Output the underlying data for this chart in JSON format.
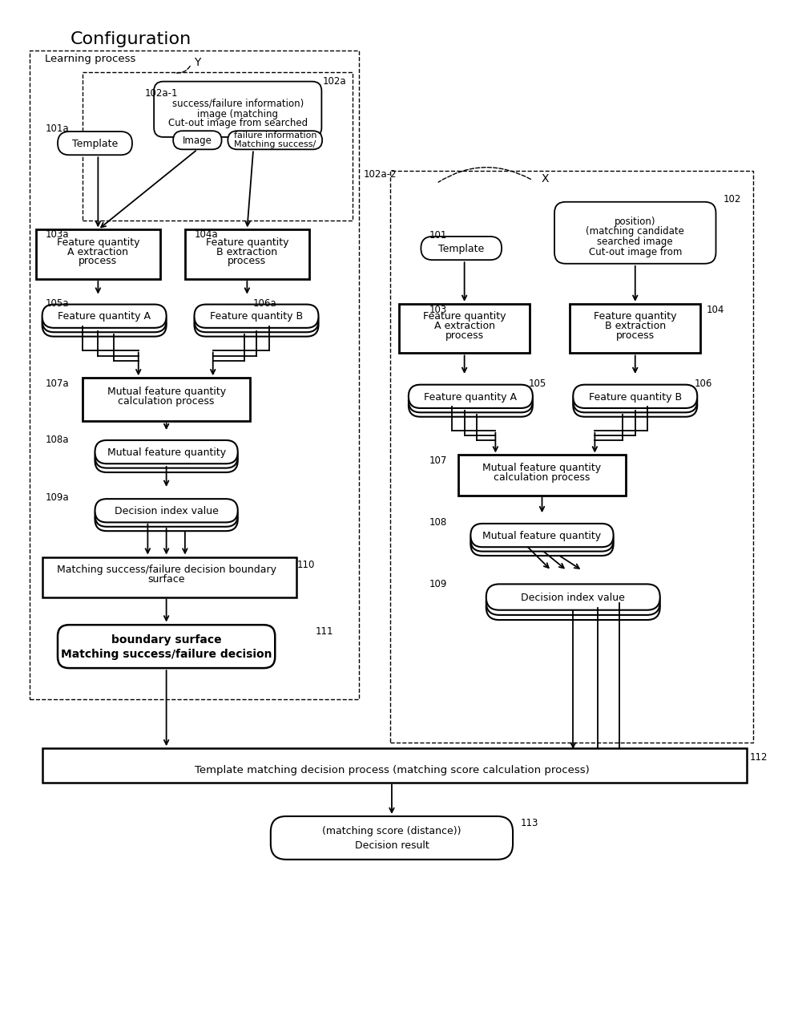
{
  "bg_color": "#ffffff",
  "fig_width": 12.4,
  "fig_height": 16.14
}
